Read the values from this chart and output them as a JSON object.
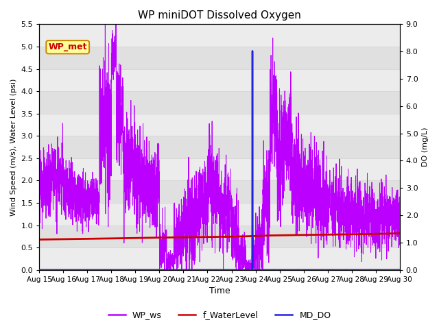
{
  "title": "WP miniDOT Dissolved Oxygen",
  "xlabel": "Time",
  "ylabel_left": "Wind Speed (m/s), Water Level (psi)",
  "ylabel_right": "DO (mg/L)",
  "station_label": "WP_met",
  "ylim_left": [
    0.0,
    5.5
  ],
  "ylim_right": [
    0.0,
    9.0
  ],
  "yticks_left": [
    0.0,
    0.5,
    1.0,
    1.5,
    2.0,
    2.5,
    3.0,
    3.5,
    4.0,
    4.5,
    5.0,
    5.5
  ],
  "yticks_right": [
    0.0,
    1.0,
    2.0,
    3.0,
    4.0,
    5.0,
    6.0,
    7.0,
    8.0,
    9.0
  ],
  "xtick_labels": [
    "Aug 15",
    "Aug 16",
    "Aug 17",
    "Aug 18",
    "Aug 19",
    "Aug 20",
    "Aug 21",
    "Aug 22",
    "Aug 23",
    "Aug 24",
    "Aug 25",
    "Aug 26",
    "Aug 27",
    "Aug 28",
    "Aug 29",
    "Aug 30"
  ],
  "grid_color": "#d8d8d8",
  "bg_color_dark": "#e0e0e0",
  "bg_color_light": "#ececec",
  "wp_ws_color": "#bb00ff",
  "f_waterlevel_color": "#cc0000",
  "md_do_color": "#2222dd",
  "station_box_facecolor": "#ffff99",
  "station_box_edgecolor": "#cc8800",
  "station_label_color": "#cc0000"
}
